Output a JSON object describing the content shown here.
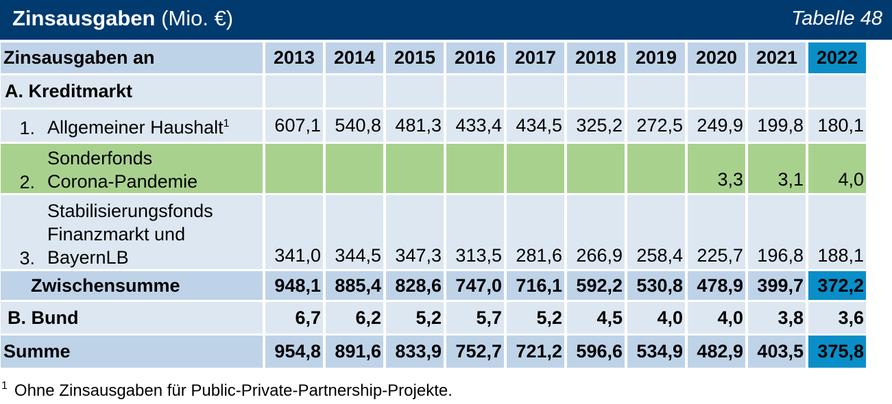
{
  "title": {
    "main": "Zinsausgaben",
    "unit": "(Mio. €)",
    "table_no": "Tabelle 48"
  },
  "header": {
    "first_col": "Zinsausgaben an",
    "years": [
      "2013",
      "2014",
      "2015",
      "2016",
      "2017",
      "2018",
      "2019",
      "2020",
      "2021",
      "2022"
    ]
  },
  "section_a": {
    "label": "A. Kreditmarkt"
  },
  "rows": [
    {
      "no": "1.",
      "label_lines": [
        "Allgemeiner Haushalt"
      ],
      "footnote": "1",
      "values": [
        "607,1",
        "540,8",
        "481,3",
        "433,4",
        "434,5",
        "325,2",
        "272,5",
        "249,9",
        "199,8",
        "180,1"
      ]
    },
    {
      "no": "2.",
      "label_lines": [
        "Sonderfonds",
        "Corona-Pandemie"
      ],
      "footnote": "",
      "values": [
        "",
        "",
        "",
        "",
        "",
        "",
        "",
        "3,3",
        "3,1",
        "4,0"
      ]
    },
    {
      "no": "3.",
      "label_lines": [
        "Stabilisierungsfonds",
        "Finanzmarkt und",
        "BayernLB"
      ],
      "footnote": "",
      "values": [
        "341,0",
        "344,5",
        "347,3",
        "313,5",
        "281,6",
        "266,9",
        "258,4",
        "225,7",
        "196,8",
        "188,1"
      ]
    }
  ],
  "subtotal": {
    "label": "Zwischensumme",
    "values": [
      "948,1",
      "885,4",
      "828,6",
      "747,0",
      "716,1",
      "592,2",
      "530,8",
      "478,9",
      "399,7",
      "372,2"
    ]
  },
  "section_b": {
    "label": "B. Bund",
    "values": [
      "6,7",
      "6,2",
      "5,2",
      "5,7",
      "5,2",
      "4,5",
      "4,0",
      "4,0",
      "3,8",
      "3,6"
    ]
  },
  "total": {
    "label": "Summe",
    "values": [
      "954,8",
      "891,6",
      "833,9",
      "752,7",
      "721,2",
      "596,6",
      "534,9",
      "482,9",
      "403,5",
      "375,8"
    ]
  },
  "footnote": {
    "mark": "1",
    "text": "Ohne Zinsausgaben für Public-Private-Partnership-Projekte."
  },
  "colors": {
    "title_bg": "#003a6e",
    "header_bg": "#bfd3e8",
    "cell_bg": "#dde7f1",
    "highlight": "#0a8ec8",
    "green_row": "#a9d18e"
  }
}
